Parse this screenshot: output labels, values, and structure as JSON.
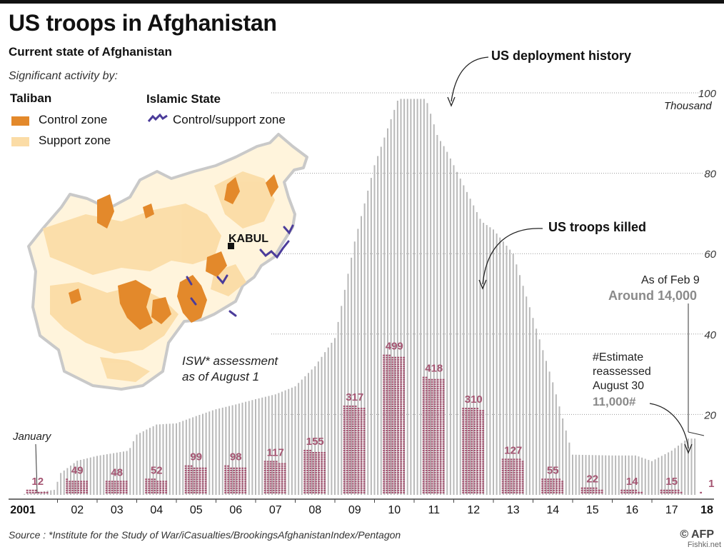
{
  "title": "US troops in Afghanistan",
  "subtitle": "Current state of Afghanistan",
  "significant_activity": "Significant activity by:",
  "legend": {
    "taliban_heading": "Taliban",
    "taliban_items": [
      {
        "label": "Control zone",
        "color": "#e3892b"
      },
      {
        "label": "Support zone",
        "color": "#fbdca6"
      }
    ],
    "islamic_state_heading": "Islamic State",
    "islamic_state_items": [
      {
        "label": "Control/support zone",
        "color": "#4b3c9a"
      }
    ]
  },
  "map": {
    "capital_label": "KABUL",
    "assessment_note_line1": "ISW* assessment",
    "assessment_note_line2": "as of August 1"
  },
  "annotations": {
    "deployment": "US deployment history",
    "killed": "US troops killed",
    "january": "January",
    "as_of_line1": "As of Feb 9",
    "as_of_line2": "Around 14,000",
    "estimate_line1": "#Estimate",
    "estimate_line2": "reassessed",
    "estimate_line3": "August 30",
    "estimate_value": "11,000#",
    "thousand": "Thousand"
  },
  "source": "Source : *Institute for the Study of War/iCasualties/BrookingsAfghanistanIndex/Pentagon",
  "credit": "© AFP",
  "watermark": "Fishki.net",
  "colors": {
    "deployment_lines": "#b9b9b9",
    "killed_marks": "#a55572",
    "taliban_control": "#e3892b",
    "taliban_support": "#fbdca6",
    "islamic_state": "#4b3c9a",
    "map_outline": "#c9c9c9"
  },
  "chart_data": [
    {
      "type": "bar",
      "name": "US deployment history",
      "unit_label": "Thousand",
      "ylim": [
        0,
        100
      ],
      "y_ticks": [
        20,
        40,
        60,
        80,
        100
      ],
      "x_tick_labels": [
        "2001",
        "02",
        "03",
        "04",
        "05",
        "06",
        "07",
        "08",
        "09",
        "10",
        "11",
        "12",
        "13",
        "14",
        "15",
        "16",
        "17",
        "18"
      ],
      "grid": true,
      "anchors": [
        {
          "t": 2001.0,
          "v": 0
        },
        {
          "t": 2001.95,
          "v": 1.3
        },
        {
          "t": 2002.05,
          "v": 5.2
        },
        {
          "t": 2002.5,
          "v": 8.5
        },
        {
          "t": 2003.0,
          "v": 9.7
        },
        {
          "t": 2003.8,
          "v": 11
        },
        {
          "t": 2004.0,
          "v": 15
        },
        {
          "t": 2004.5,
          "v": 17.5
        },
        {
          "t": 2005.0,
          "v": 17.8
        },
        {
          "t": 2005.5,
          "v": 19.6
        },
        {
          "t": 2006.0,
          "v": 21.3
        },
        {
          "t": 2006.5,
          "v": 22.5
        },
        {
          "t": 2007.0,
          "v": 23.8
        },
        {
          "t": 2007.5,
          "v": 25
        },
        {
          "t": 2008.0,
          "v": 27
        },
        {
          "t": 2008.5,
          "v": 32
        },
        {
          "t": 2009.0,
          "v": 39
        },
        {
          "t": 2009.5,
          "v": 63
        },
        {
          "t": 2010.0,
          "v": 82
        },
        {
          "t": 2010.6,
          "v": 98.5
        },
        {
          "t": 2011.3,
          "v": 98.5
        },
        {
          "t": 2011.6,
          "v": 89
        },
        {
          "t": 2011.8,
          "v": 86
        },
        {
          "t": 2012.0,
          "v": 82
        },
        {
          "t": 2012.3,
          "v": 76
        },
        {
          "t": 2012.7,
          "v": 68
        },
        {
          "t": 2013.0,
          "v": 66
        },
        {
          "t": 2013.5,
          "v": 60
        },
        {
          "t": 2014.0,
          "v": 44
        },
        {
          "t": 2014.5,
          "v": 28
        },
        {
          "t": 2015.0,
          "v": 10
        },
        {
          "t": 2016.0,
          "v": 9.8
        },
        {
          "t": 2016.6,
          "v": 9.8
        },
        {
          "t": 2017.0,
          "v": 8.4
        },
        {
          "t": 2017.5,
          "v": 11
        },
        {
          "t": 2017.9,
          "v": 14
        },
        {
          "t": 2018.1,
          "v": 14
        }
      ],
      "callouts": [
        {
          "label": "Around 14,000",
          "value": 14,
          "date": "Feb 9, 2018"
        },
        {
          "label": "11,000#",
          "value": 11,
          "note": "Estimate reassessed August 30"
        }
      ]
    },
    {
      "type": "bar",
      "name": "US troops killed",
      "categories": [
        "2001",
        "02",
        "03",
        "04",
        "05",
        "06",
        "07",
        "08",
        "09",
        "10",
        "11",
        "12",
        "13",
        "14",
        "15",
        "16",
        "17",
        "18"
      ],
      "values": [
        12,
        49,
        48,
        52,
        99,
        98,
        117,
        155,
        317,
        499,
        418,
        310,
        127,
        55,
        22,
        14,
        15,
        1
      ]
    }
  ]
}
